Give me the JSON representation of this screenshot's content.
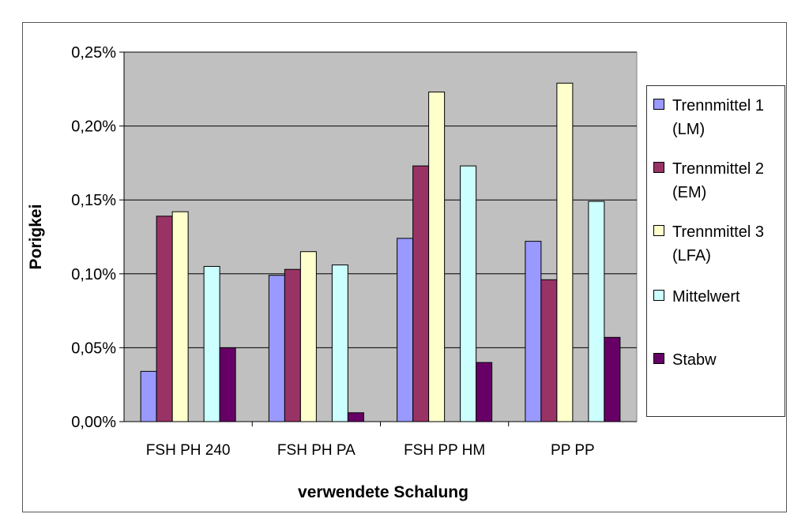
{
  "chart_data": {
    "type": "bar",
    "title": "",
    "xlabel": "verwendete Schalung",
    "ylabel": "Porigkei",
    "ylim": [
      0,
      0.25
    ],
    "yticks": [
      "0,00%",
      "0,05%",
      "0,10%",
      "0,15%",
      "0,20%",
      "0,25%"
    ],
    "ytick_values": [
      0,
      0.05,
      0.1,
      0.15,
      0.2,
      0.25
    ],
    "grid": true,
    "legend_position": "right",
    "categories": [
      "FSH PH 240",
      "FSH PH PA",
      "FSH PP HM",
      "PP PP"
    ],
    "series": [
      {
        "name": "Trennmittel 1\n(LM)",
        "color": "#9999ff",
        "values": [
          0.034,
          0.099,
          0.124,
          0.122
        ]
      },
      {
        "name": "Trennmittel 2\n(EM)",
        "color": "#993366",
        "values": [
          0.139,
          0.103,
          0.173,
          0.096
        ]
      },
      {
        "name": "Trennmittel 3\n(LFA)",
        "color": "#ffffcc",
        "values": [
          0.142,
          0.115,
          0.223,
          0.229
        ]
      },
      {
        "name": "Mittelwert",
        "color": "#ccffff",
        "values": [
          0.105,
          0.106,
          0.173,
          0.149
        ]
      },
      {
        "name": "Stabw",
        "color": "#660066",
        "values": [
          0.05,
          0.006,
          0.04,
          0.057
        ]
      }
    ],
    "plot_background": "#c0c0c0"
  }
}
